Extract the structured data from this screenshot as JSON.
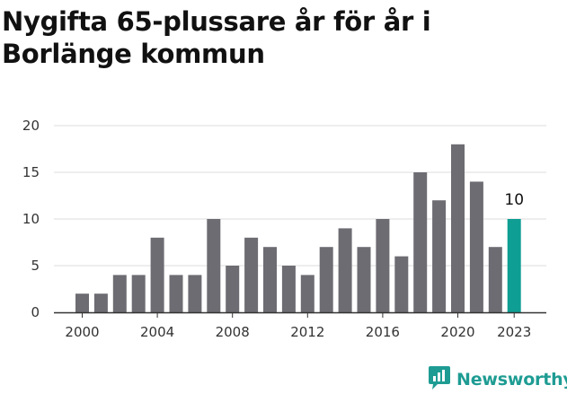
{
  "header": {
    "title": "Nygifta 65-plussare år för år i Borlänge kommun"
  },
  "brand": {
    "name": "Newsworthy",
    "icon": "newsworthy-chat-chart-icon",
    "color": "#1e9c93"
  },
  "chart_data": {
    "type": "bar",
    "title": "Nygifta 65-plussare år för år i Borlänge kommun",
    "xlabel": "",
    "ylabel": "",
    "ylim": [
      0,
      20
    ],
    "yticks": [
      "0",
      "5",
      "10",
      "15",
      "20"
    ],
    "xticks": [
      "2000",
      "2004",
      "2008",
      "2012",
      "2016",
      "2020",
      "2023"
    ],
    "categories": [
      2000,
      2001,
      2002,
      2003,
      2004,
      2005,
      2006,
      2007,
      2008,
      2009,
      2010,
      2011,
      2012,
      2013,
      2014,
      2015,
      2016,
      2017,
      2018,
      2019,
      2020,
      2021,
      2022,
      2023
    ],
    "values": [
      2,
      2,
      4,
      4,
      8,
      4,
      4,
      10,
      5,
      8,
      7,
      5,
      4,
      7,
      9,
      7,
      10,
      6,
      15,
      12,
      18,
      14,
      7,
      10
    ],
    "highlight": {
      "category": 2023,
      "label": "10"
    },
    "colors": {
      "bar": "#6d6c72",
      "highlight": "#0e9e93",
      "grid": "#dddddd",
      "axis": "#333333"
    },
    "grid": true
  }
}
